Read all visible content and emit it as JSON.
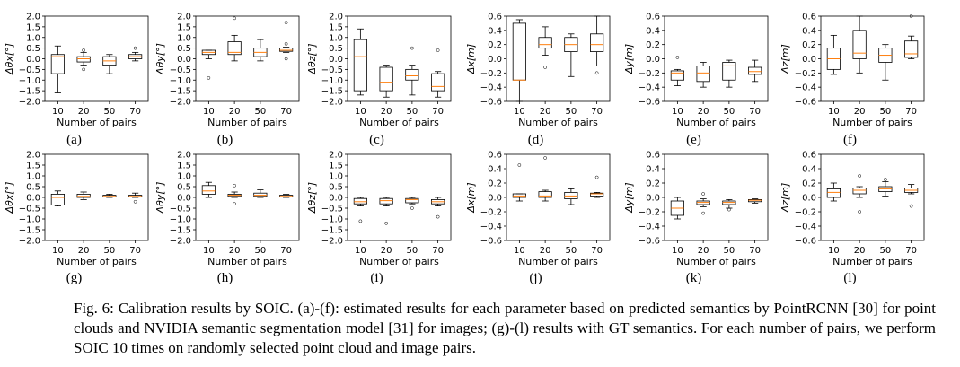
{
  "caption": {
    "prefix": "Fig. 6:",
    "text": "Calibration results by SOIC. (a)-(f): estimated results for each parameter based on predicted semantics by PointRCNN [30] for point clouds and NVIDIA semantic segmentation model [31] for images; (g)-(l) results with GT semantics. For each number of pairs, we perform SOIC 10 times on randomly selected point cloud and image pairs."
  },
  "chart_data": [
    {
      "type": "box",
      "label": "(a)",
      "xlabel": "Number of pairs",
      "ylabel": "Δθx[°]",
      "categories": [
        "10",
        "20",
        "50",
        "70"
      ],
      "ylim": [
        -2.0,
        2.0
      ],
      "yticks": [
        "2.0",
        "1.5",
        "1.0",
        "0.5",
        "0.0",
        "−0.5",
        "−1.0",
        "−1.5",
        "−2.0"
      ],
      "boxes": [
        {
          "min": -1.6,
          "q1": -0.7,
          "median": 0.1,
          "q3": 0.2,
          "max": 0.6,
          "outliers": []
        },
        {
          "min": -0.3,
          "q1": -0.15,
          "median": 0.0,
          "q3": 0.1,
          "max": 0.3,
          "outliers": [
            0.4,
            -0.5
          ]
        },
        {
          "min": -0.7,
          "q1": -0.3,
          "median": -0.1,
          "q3": 0.1,
          "max": 0.2,
          "outliers": []
        },
        {
          "min": -0.1,
          "q1": 0.0,
          "median": 0.1,
          "q3": 0.2,
          "max": 0.3,
          "outliers": [
            0.5
          ]
        }
      ]
    },
    {
      "type": "box",
      "label": "(b)",
      "xlabel": "Number of pairs",
      "ylabel": "Δθy[°]",
      "categories": [
        "10",
        "20",
        "50",
        "70"
      ],
      "ylim": [
        -2.0,
        2.0
      ],
      "yticks": [
        "2.0",
        "1.5",
        "1.0",
        "0.5",
        "0.0",
        "−0.5",
        "−1.0",
        "−1.5",
        "−2.0"
      ],
      "boxes": [
        {
          "min": 0.0,
          "q1": 0.2,
          "median": 0.3,
          "q3": 0.4,
          "max": 0.4,
          "outliers": [
            -0.9
          ]
        },
        {
          "min": -0.1,
          "q1": 0.2,
          "median": 0.3,
          "q3": 0.8,
          "max": 1.1,
          "outliers": [
            1.9
          ]
        },
        {
          "min": -0.1,
          "q1": 0.1,
          "median": 0.3,
          "q3": 0.5,
          "max": 0.9,
          "outliers": []
        },
        {
          "min": 0.3,
          "q1": 0.35,
          "median": 0.4,
          "q3": 0.5,
          "max": 0.55,
          "outliers": [
            1.7,
            0.7,
            0.0
          ]
        }
      ]
    },
    {
      "type": "box",
      "label": "(c)",
      "xlabel": "Number of pairs",
      "ylabel": "Δθz[°]",
      "categories": [
        "10",
        "20",
        "50",
        "70"
      ],
      "ylim": [
        -2.0,
        2.0
      ],
      "yticks": [
        "2.0",
        "1.5",
        "1.0",
        "0.5",
        "0.0",
        "−0.5",
        "−1.0",
        "−1.5",
        "−2.0"
      ],
      "boxes": [
        {
          "min": -1.7,
          "q1": -1.5,
          "median": 0.1,
          "q3": 0.9,
          "max": 1.4,
          "outliers": []
        },
        {
          "min": -1.8,
          "q1": -1.5,
          "median": -1.1,
          "q3": -0.4,
          "max": -0.3,
          "outliers": []
        },
        {
          "min": -1.7,
          "q1": -1.0,
          "median": -0.8,
          "q3": -0.5,
          "max": -0.3,
          "outliers": [
            0.5
          ]
        },
        {
          "min": -1.8,
          "q1": -1.5,
          "median": -1.3,
          "q3": -0.7,
          "max": -0.6,
          "outliers": [
            0.4
          ]
        }
      ]
    },
    {
      "type": "box",
      "label": "(d)",
      "xlabel": "Number of pairs",
      "ylabel": "Δx[m]",
      "categories": [
        "10",
        "20",
        "50",
        "70"
      ],
      "ylim": [
        -0.6,
        0.6
      ],
      "yticks": [
        "0.6",
        "0.4",
        "0.2",
        "0.0",
        "−0.2",
        "−0.4",
        "−0.6"
      ],
      "boxes": [
        {
          "min": -0.6,
          "q1": -0.3,
          "median": -0.3,
          "q3": 0.5,
          "max": 0.55,
          "outliers": []
        },
        {
          "min": 0.05,
          "q1": 0.15,
          "median": 0.2,
          "q3": 0.3,
          "max": 0.45,
          "outliers": [
            -0.12
          ]
        },
        {
          "min": -0.25,
          "q1": 0.1,
          "median": 0.2,
          "q3": 0.3,
          "max": 0.35,
          "outliers": []
        },
        {
          "min": -0.1,
          "q1": 0.1,
          "median": 0.2,
          "q3": 0.35,
          "max": 0.6,
          "outliers": [
            -0.2
          ]
        }
      ]
    },
    {
      "type": "box",
      "label": "(e)",
      "xlabel": "Number of pairs",
      "ylabel": "Δy[m]",
      "categories": [
        "10",
        "20",
        "50",
        "70"
      ],
      "ylim": [
        -0.6,
        0.6
      ],
      "yticks": [
        "0.6",
        "0.4",
        "0.2",
        "0.0",
        "−0.2",
        "−0.4",
        "−0.6"
      ],
      "boxes": [
        {
          "min": -0.38,
          "q1": -0.3,
          "median": -0.2,
          "q3": -0.17,
          "max": -0.15,
          "outliers": [
            0.02
          ]
        },
        {
          "min": -0.4,
          "q1": -0.32,
          "median": -0.2,
          "q3": -0.1,
          "max": -0.05,
          "outliers": []
        },
        {
          "min": -0.4,
          "q1": -0.3,
          "median": -0.1,
          "q3": -0.05,
          "max": -0.02,
          "outliers": []
        },
        {
          "min": -0.32,
          "q1": -0.22,
          "median": -0.18,
          "q3": -0.12,
          "max": -0.02,
          "outliers": []
        }
      ]
    },
    {
      "type": "box",
      "label": "(f)",
      "xlabel": "Number of pairs",
      "ylabel": "Δz[m]",
      "categories": [
        "10",
        "20",
        "50",
        "70"
      ],
      "ylim": [
        -0.6,
        0.6
      ],
      "yticks": [
        "0.6",
        "0.4",
        "0.2",
        "0.0",
        "−0.2",
        "−0.4",
        "−0.6"
      ],
      "boxes": [
        {
          "min": -0.22,
          "q1": -0.15,
          "median": 0.0,
          "q3": 0.15,
          "max": 0.33,
          "outliers": []
        },
        {
          "min": -0.2,
          "q1": 0.0,
          "median": 0.08,
          "q3": 0.4,
          "max": 0.6,
          "outliers": []
        },
        {
          "min": -0.3,
          "q1": -0.05,
          "median": 0.05,
          "q3": 0.15,
          "max": 0.2,
          "outliers": []
        },
        {
          "min": 0.0,
          "q1": 0.02,
          "median": 0.07,
          "q3": 0.25,
          "max": 0.32,
          "outliers": [
            0.6
          ]
        }
      ]
    },
    {
      "type": "box",
      "label": "(g)",
      "xlabel": "Number of pairs",
      "ylabel": "Δθx[°]",
      "categories": [
        "10",
        "20",
        "50",
        "70"
      ],
      "ylim": [
        -2.0,
        2.0
      ],
      "yticks": [
        "2.0",
        "1.5",
        "1.0",
        "0.5",
        "0.0",
        "−0.5",
        "−1.0",
        "−1.5",
        "−2.0"
      ],
      "boxes": [
        {
          "min": -0.4,
          "q1": -0.35,
          "median": 0.0,
          "q3": 0.15,
          "max": 0.3,
          "outliers": []
        },
        {
          "min": -0.1,
          "q1": 0.0,
          "median": 0.05,
          "q3": 0.15,
          "max": 0.25,
          "outliers": []
        },
        {
          "min": 0.0,
          "q1": 0.02,
          "median": 0.05,
          "q3": 0.1,
          "max": 0.15,
          "outliers": []
        },
        {
          "min": 0.0,
          "q1": 0.02,
          "median": 0.05,
          "q3": 0.1,
          "max": 0.2,
          "outliers": [
            -0.2
          ]
        }
      ]
    },
    {
      "type": "box",
      "label": "(h)",
      "xlabel": "Number of pairs",
      "ylabel": "Δθy[°]",
      "categories": [
        "10",
        "20",
        "50",
        "70"
      ],
      "ylim": [
        -2.0,
        2.0
      ],
      "yticks": [
        "2.0",
        "1.5",
        "1.0",
        "0.5",
        "0.0",
        "−0.5",
        "−1.0",
        "−1.5",
        "−2.0"
      ],
      "boxes": [
        {
          "min": 0.0,
          "q1": 0.15,
          "median": 0.3,
          "q3": 0.55,
          "max": 0.7,
          "outliers": []
        },
        {
          "min": 0.0,
          "q1": 0.05,
          "median": 0.1,
          "q3": 0.15,
          "max": 0.25,
          "outliers": [
            0.55,
            -0.3
          ]
        },
        {
          "min": 0.0,
          "q1": 0.05,
          "median": 0.1,
          "q3": 0.2,
          "max": 0.35,
          "outliers": []
        },
        {
          "min": 0.0,
          "q1": 0.03,
          "median": 0.05,
          "q3": 0.1,
          "max": 0.15,
          "outliers": []
        }
      ]
    },
    {
      "type": "box",
      "label": "(i)",
      "xlabel": "Number of pairs",
      "ylabel": "Δθz[°]",
      "categories": [
        "10",
        "20",
        "50",
        "70"
      ],
      "ylim": [
        -2.0,
        2.0
      ],
      "yticks": [
        "2.0",
        "1.5",
        "1.0",
        "0.5",
        "0.0",
        "−0.5",
        "−1.0",
        "−1.5",
        "−2.0"
      ],
      "boxes": [
        {
          "min": -0.4,
          "q1": -0.3,
          "median": -0.2,
          "q3": -0.05,
          "max": 0.0,
          "outliers": [
            -1.1
          ]
        },
        {
          "min": -0.4,
          "q1": -0.3,
          "median": -0.15,
          "q3": -0.05,
          "max": 0.0,
          "outliers": [
            -1.2
          ]
        },
        {
          "min": -0.3,
          "q1": -0.25,
          "median": -0.1,
          "q3": -0.05,
          "max": 0.0,
          "outliers": [
            -0.5
          ]
        },
        {
          "min": -0.4,
          "q1": -0.3,
          "median": -0.2,
          "q3": -0.1,
          "max": 0.0,
          "outliers": [
            -0.9
          ]
        }
      ]
    },
    {
      "type": "box",
      "label": "(j)",
      "xlabel": "Number of pairs",
      "ylabel": "Δx[m]",
      "categories": [
        "10",
        "20",
        "50",
        "70"
      ],
      "ylim": [
        -0.6,
        0.6
      ],
      "yticks": [
        "0.6",
        "0.4",
        "0.2",
        "0.0",
        "−0.2",
        "−0.4",
        "−0.6"
      ],
      "boxes": [
        {
          "min": -0.05,
          "q1": 0.0,
          "median": 0.02,
          "q3": 0.05,
          "max": 0.05,
          "outliers": [
            0.45
          ]
        },
        {
          "min": -0.05,
          "q1": 0.0,
          "median": 0.02,
          "q3": 0.08,
          "max": 0.1,
          "outliers": [
            0.55
          ]
        },
        {
          "min": -0.1,
          "q1": -0.02,
          "median": 0.02,
          "q3": 0.07,
          "max": 0.12,
          "outliers": []
        },
        {
          "min": 0.0,
          "q1": 0.02,
          "median": 0.05,
          "q3": 0.06,
          "max": 0.07,
          "outliers": [
            0.28
          ]
        }
      ]
    },
    {
      "type": "box",
      "label": "(k)",
      "xlabel": "Number of pairs",
      "ylabel": "Δy[m]",
      "categories": [
        "10",
        "20",
        "50",
        "70"
      ],
      "ylim": [
        -0.6,
        0.6
      ],
      "yticks": [
        "0.6",
        "0.4",
        "0.2",
        "0.0",
        "−0.2",
        "−0.4",
        "−0.6"
      ],
      "boxes": [
        {
          "min": -0.3,
          "q1": -0.25,
          "median": -0.15,
          "q3": -0.05,
          "max": 0.0,
          "outliers": []
        },
        {
          "min": -0.13,
          "q1": -0.1,
          "median": -0.07,
          "q3": -0.05,
          "max": -0.02,
          "outliers": [
            0.05,
            -0.22
          ]
        },
        {
          "min": -0.15,
          "q1": -0.1,
          "median": -0.07,
          "q3": -0.05,
          "max": -0.03,
          "outliers": [
            -0.17
          ]
        },
        {
          "min": -0.08,
          "q1": -0.06,
          "median": -0.04,
          "q3": -0.03,
          "max": -0.02,
          "outliers": []
        }
      ]
    },
    {
      "type": "box",
      "label": "(l)",
      "xlabel": "Number of pairs",
      "ylabel": "Δz[m]",
      "categories": [
        "10",
        "20",
        "50",
        "70"
      ],
      "ylim": [
        -0.6,
        0.6
      ],
      "yticks": [
        "0.6",
        "0.4",
        "0.2",
        "0.0",
        "−0.2",
        "−0.4",
        "−0.6"
      ],
      "boxes": [
        {
          "min": -0.05,
          "q1": 0.0,
          "median": 0.07,
          "q3": 0.12,
          "max": 0.2,
          "outliers": []
        },
        {
          "min": 0.0,
          "q1": 0.05,
          "median": 0.1,
          "q3": 0.13,
          "max": 0.15,
          "outliers": [
            0.3,
            -0.2
          ]
        },
        {
          "min": 0.02,
          "q1": 0.08,
          "median": 0.12,
          "q3": 0.15,
          "max": 0.22,
          "outliers": [
            0.25
          ]
        },
        {
          "min": 0.05,
          "q1": 0.07,
          "median": 0.1,
          "q3": 0.13,
          "max": 0.18,
          "outliers": [
            -0.12
          ]
        }
      ]
    }
  ]
}
